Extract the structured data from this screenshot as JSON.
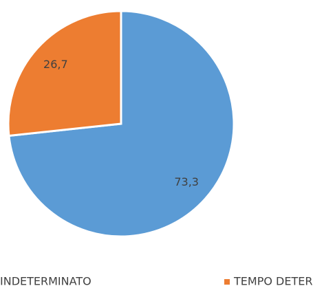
{
  "chart_data": {
    "type": "pie",
    "categories": [
      "INDETERMINATO",
      "TEMPO DETERMINATO"
    ],
    "values": [
      73.3,
      26.7
    ],
    "value_labels": [
      "73,3",
      "26,7"
    ],
    "colors": [
      "#5b9bd5",
      "#ed7d31"
    ],
    "legend": "bottom"
  }
}
